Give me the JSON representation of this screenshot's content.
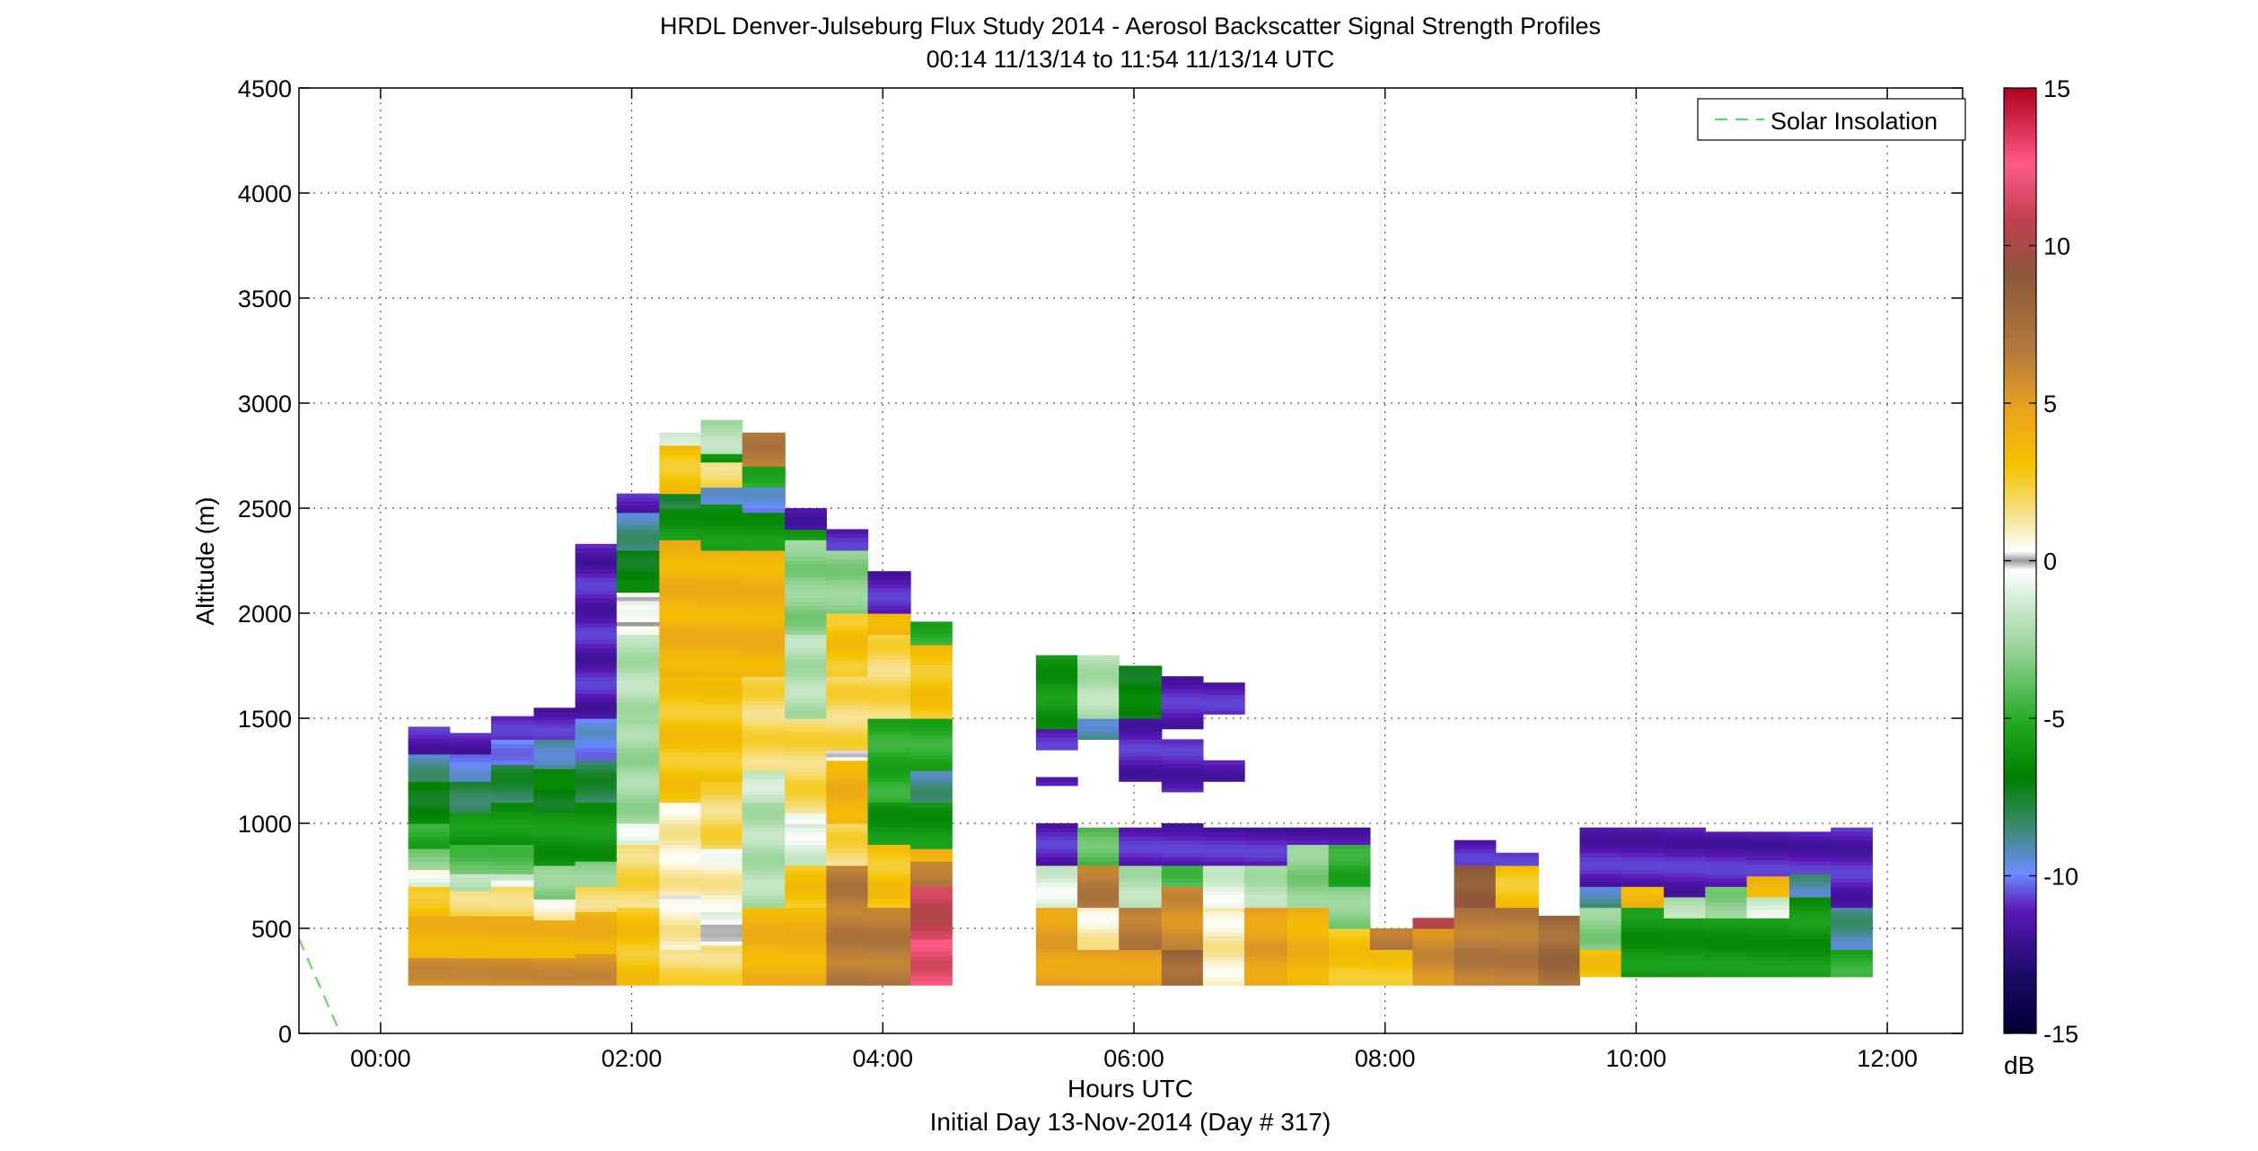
{
  "chart_data": {
    "type": "heatmap",
    "title": "HRDL Denver-Julseburg Flux Study 2014 - Aerosol Backscatter Signal Strength Profiles",
    "subtitle": "00:14 11/13/14 to 11:54 11/13/14  UTC",
    "xlabel": "Hours UTC",
    "xlabel2": "Initial Day 13-Nov-2014 (Day # 317)",
    "ylabel": "Altitude (m)",
    "xlim": [
      -0.65,
      12.6
    ],
    "ylim": [
      0,
      4500
    ],
    "x_ticks": [
      0,
      2,
      4,
      6,
      8,
      10,
      12
    ],
    "x_tick_labels": [
      "00:00",
      "02:00",
      "04:00",
      "06:00",
      "08:00",
      "10:00",
      "12:00"
    ],
    "y_ticks": [
      0,
      500,
      1000,
      1500,
      2000,
      2500,
      3000,
      3500,
      4000,
      4500
    ],
    "y_tick_labels": [
      "0",
      "500",
      "1000",
      "1500",
      "2000",
      "2500",
      "3000",
      "3500",
      "4000",
      "4500"
    ],
    "grid": true,
    "colorbar": {
      "range": [
        -15,
        15
      ],
      "ticks": [
        -15,
        -10,
        -5,
        0,
        5,
        10,
        15
      ],
      "tick_labels": [
        "-15",
        "-10",
        "-5",
        "0",
        "5",
        "10",
        "15"
      ],
      "units_label": "dB"
    },
    "legend": {
      "position": "top-right",
      "entries": [
        {
          "label": "Solar Insolation",
          "color": "#55dd55",
          "style": "dashed"
        }
      ]
    },
    "solar_insolation_line": [
      {
        "x": -0.65,
        "y": 450
      },
      {
        "x": -0.32,
        "y": 0
      }
    ],
    "profiles": [
      {
        "t0": 0.22,
        "t1": 0.55,
        "segments": [
          [
            230,
            360,
            6
          ],
          [
            360,
            560,
            4
          ],
          [
            560,
            700,
            3
          ],
          [
            700,
            760,
            -1
          ],
          [
            760,
            780,
            0
          ],
          [
            780,
            880,
            -3
          ],
          [
            880,
            1000,
            -5
          ],
          [
            1000,
            1200,
            -7
          ],
          [
            1200,
            1330,
            -9
          ],
          [
            1330,
            1460,
            -11.5
          ]
        ]
      },
      {
        "t0": 0.55,
        "t1": 0.88,
        "segments": [
          [
            230,
            360,
            6
          ],
          [
            360,
            560,
            4
          ],
          [
            560,
            680,
            2
          ],
          [
            680,
            760,
            -2
          ],
          [
            760,
            900,
            -4
          ],
          [
            900,
            1050,
            -6
          ],
          [
            1050,
            1200,
            -8
          ],
          [
            1200,
            1330,
            -10
          ],
          [
            1330,
            1430,
            -11.5
          ]
        ]
      },
      {
        "t0": 0.88,
        "t1": 1.22,
        "segments": [
          [
            230,
            360,
            6
          ],
          [
            360,
            560,
            4
          ],
          [
            560,
            700,
            2
          ],
          [
            700,
            730,
            0
          ],
          [
            730,
            760,
            -2
          ],
          [
            760,
            900,
            -4
          ],
          [
            900,
            1100,
            -6
          ],
          [
            1100,
            1280,
            -8
          ],
          [
            1280,
            1400,
            -10
          ],
          [
            1400,
            1510,
            -11.5
          ]
        ]
      },
      {
        "t0": 1.22,
        "t1": 1.55,
        "segments": [
          [
            230,
            360,
            6
          ],
          [
            360,
            540,
            4
          ],
          [
            540,
            640,
            1
          ],
          [
            640,
            800,
            -3
          ],
          [
            800,
            1050,
            -6
          ],
          [
            1050,
            1260,
            -7
          ],
          [
            1260,
            1400,
            -9
          ],
          [
            1400,
            1550,
            -11.5
          ]
        ]
      },
      {
        "t0": 1.55,
        "t1": 1.88,
        "segments": [
          [
            230,
            380,
            6
          ],
          [
            380,
            580,
            4
          ],
          [
            580,
            700,
            2
          ],
          [
            700,
            820,
            -3
          ],
          [
            820,
            1100,
            -6
          ],
          [
            1100,
            1300,
            -8
          ],
          [
            1300,
            1500,
            -10
          ],
          [
            1500,
            2330,
            -11.5
          ]
        ]
      },
      {
        "t0": 1.88,
        "t1": 2.22,
        "segments": [
          [
            230,
            600,
            3
          ],
          [
            600,
            900,
            2
          ],
          [
            900,
            1000,
            -1
          ],
          [
            1000,
            1500,
            -2.5
          ],
          [
            1500,
            1900,
            -2
          ],
          [
            1900,
            2100,
            0
          ],
          [
            2100,
            2300,
            -7
          ],
          [
            2300,
            2480,
            -9
          ],
          [
            2480,
            2570,
            -11.5
          ]
        ]
      },
      {
        "t0": 2.22,
        "t1": 2.55,
        "segments": [
          [
            230,
            400,
            2
          ],
          [
            400,
            620,
            1
          ],
          [
            620,
            660,
            0
          ],
          [
            660,
            1100,
            1
          ],
          [
            1100,
            1700,
            3
          ],
          [
            1700,
            2350,
            4
          ],
          [
            2350,
            2500,
            -6
          ],
          [
            2500,
            2570,
            -8
          ],
          [
            2570,
            2650,
            3
          ],
          [
            2650,
            2800,
            3
          ],
          [
            2800,
            2860,
            -1.5
          ]
        ]
      },
      {
        "t0": 2.55,
        "t1": 2.88,
        "segments": [
          [
            230,
            420,
            2
          ],
          [
            420,
            580,
            -0.5
          ],
          [
            580,
            800,
            1
          ],
          [
            800,
            880,
            0
          ],
          [
            880,
            1200,
            2
          ],
          [
            1200,
            1700,
            3
          ],
          [
            1700,
            2300,
            4
          ],
          [
            2300,
            2520,
            -6
          ],
          [
            2520,
            2600,
            -10
          ],
          [
            2600,
            2720,
            2
          ],
          [
            2720,
            2760,
            -6
          ],
          [
            2760,
            2920,
            -2
          ]
        ]
      },
      {
        "t0": 2.88,
        "t1": 3.22,
        "segments": [
          [
            230,
            600,
            4
          ],
          [
            600,
            1100,
            -2
          ],
          [
            1100,
            1250,
            -1.5
          ],
          [
            1250,
            1700,
            2
          ],
          [
            1700,
            2300,
            4
          ],
          [
            2300,
            2480,
            -6
          ],
          [
            2480,
            2600,
            -10
          ],
          [
            2600,
            2700,
            -5
          ],
          [
            2700,
            2860,
            7
          ]
        ]
      },
      {
        "t0": 3.22,
        "t1": 3.55,
        "segments": [
          [
            230,
            600,
            4
          ],
          [
            600,
            800,
            3
          ],
          [
            800,
            1000,
            -1
          ],
          [
            1000,
            1050,
            0
          ],
          [
            1050,
            1500,
            2
          ],
          [
            1500,
            1900,
            -2
          ],
          [
            1900,
            2350,
            -3
          ],
          [
            2350,
            2400,
            -6
          ],
          [
            2400,
            2500,
            -11.5
          ]
        ]
      },
      {
        "t0": 3.55,
        "t1": 3.88,
        "segments": [
          [
            230,
            800,
            7
          ],
          [
            800,
            1000,
            2
          ],
          [
            1000,
            1300,
            4
          ],
          [
            1300,
            1350,
            0
          ],
          [
            1350,
            1700,
            2
          ],
          [
            1700,
            2000,
            3
          ],
          [
            2000,
            2300,
            -3
          ],
          [
            2300,
            2400,
            -11.5
          ]
        ]
      },
      {
        "t0": 3.88,
        "t1": 4.22,
        "segments": [
          [
            230,
            600,
            7
          ],
          [
            600,
            900,
            3
          ],
          [
            900,
            1100,
            -6
          ],
          [
            1100,
            1500,
            -5
          ],
          [
            1500,
            1900,
            2
          ],
          [
            1900,
            2000,
            4
          ],
          [
            2000,
            2200,
            -11.5
          ]
        ]
      },
      {
        "t0": 4.22,
        "t1": 4.55,
        "segments": [
          [
            230,
            450,
            12
          ],
          [
            450,
            700,
            11
          ],
          [
            700,
            820,
            7
          ],
          [
            820,
            880,
            4
          ],
          [
            880,
            1100,
            -6
          ],
          [
            1100,
            1250,
            -9
          ],
          [
            1250,
            1500,
            -5
          ],
          [
            1500,
            1850,
            3
          ],
          [
            1850,
            1960,
            -5
          ]
        ]
      },
      {
        "t0": 5.22,
        "t1": 5.55,
        "segments": [
          [
            230,
            600,
            5
          ],
          [
            600,
            800,
            -1
          ],
          [
            800,
            1000,
            -11.5
          ],
          [
            1180,
            1220,
            -11.5
          ],
          [
            1350,
            1450,
            -11.5
          ],
          [
            1450,
            1800,
            -6
          ]
        ]
      },
      {
        "t0": 5.55,
        "t1": 5.88,
        "segments": [
          [
            230,
            400,
            5
          ],
          [
            400,
            600,
            1
          ],
          [
            600,
            800,
            7
          ],
          [
            800,
            980,
            -4
          ],
          [
            1400,
            1500,
            -9
          ],
          [
            1500,
            1800,
            -2
          ]
        ]
      },
      {
        "t0": 5.88,
        "t1": 6.22,
        "segments": [
          [
            230,
            400,
            5
          ],
          [
            400,
            600,
            7
          ],
          [
            600,
            800,
            -2
          ],
          [
            800,
            980,
            -11.5
          ],
          [
            1200,
            1500,
            -11.5
          ],
          [
            1500,
            1750,
            -7
          ]
        ]
      },
      {
        "t0": 6.22,
        "t1": 6.55,
        "segments": [
          [
            230,
            400,
            8
          ],
          [
            400,
            700,
            6
          ],
          [
            700,
            800,
            -4
          ],
          [
            800,
            1000,
            -11.5
          ],
          [
            1150,
            1400,
            -11.5
          ],
          [
            1450,
            1700,
            -11.5
          ]
        ]
      },
      {
        "t0": 6.55,
        "t1": 6.88,
        "segments": [
          [
            230,
            600,
            1
          ],
          [
            600,
            800,
            -1
          ],
          [
            800,
            980,
            -11.5
          ],
          [
            1200,
            1300,
            -11.5
          ],
          [
            1520,
            1670,
            -11.5
          ]
        ]
      },
      {
        "t0": 6.88,
        "t1": 7.22,
        "segments": [
          [
            230,
            600,
            5
          ],
          [
            600,
            800,
            -2
          ],
          [
            800,
            980,
            -11.5
          ]
        ]
      },
      {
        "t0": 7.22,
        "t1": 7.55,
        "segments": [
          [
            230,
            600,
            4
          ],
          [
            600,
            900,
            -3
          ],
          [
            900,
            980,
            -11.5
          ]
        ]
      },
      {
        "t0": 7.55,
        "t1": 7.88,
        "segments": [
          [
            230,
            500,
            3
          ],
          [
            500,
            700,
            -3
          ],
          [
            700,
            900,
            -5
          ],
          [
            900,
            980,
            -11.5
          ]
        ]
      },
      {
        "t0": 7.88,
        "t1": 8.22,
        "segments": [
          [
            230,
            400,
            3
          ],
          [
            400,
            500,
            7
          ]
        ]
      },
      {
        "t0": 8.22,
        "t1": 8.55,
        "segments": [
          [
            230,
            500,
            6
          ],
          [
            500,
            550,
            11
          ]
        ]
      },
      {
        "t0": 8.55,
        "t1": 8.88,
        "segments": [
          [
            230,
            600,
            7
          ],
          [
            600,
            800,
            9
          ],
          [
            800,
            920,
            -11.5
          ]
        ]
      },
      {
        "t0": 8.88,
        "t1": 9.22,
        "segments": [
          [
            230,
            600,
            7
          ],
          [
            600,
            800,
            3
          ],
          [
            800,
            860,
            -11.5
          ]
        ]
      },
      {
        "t0": 9.22,
        "t1": 9.55,
        "segments": [
          [
            230,
            400,
            8
          ],
          [
            400,
            560,
            8
          ]
        ]
      },
      {
        "t0": 9.55,
        "t1": 9.88,
        "segments": [
          [
            270,
            400,
            3
          ],
          [
            400,
            600,
            -3
          ],
          [
            600,
            700,
            -9
          ],
          [
            700,
            980,
            -11.5
          ]
        ]
      },
      {
        "t0": 9.88,
        "t1": 10.22,
        "segments": [
          [
            270,
            600,
            -6
          ],
          [
            600,
            700,
            4
          ],
          [
            700,
            980,
            -11.5
          ]
        ]
      },
      {
        "t0": 10.22,
        "t1": 10.55,
        "segments": [
          [
            270,
            550,
            -6
          ],
          [
            550,
            650,
            -2
          ],
          [
            650,
            980,
            -11.5
          ]
        ]
      },
      {
        "t0": 10.55,
        "t1": 10.88,
        "segments": [
          [
            270,
            550,
            -6
          ],
          [
            550,
            700,
            -3
          ],
          [
            700,
            960,
            -11.5
          ]
        ]
      },
      {
        "t0": 10.88,
        "t1": 11.22,
        "segments": [
          [
            270,
            550,
            -6
          ],
          [
            550,
            650,
            -1
          ],
          [
            650,
            750,
            4
          ],
          [
            750,
            960,
            -11.5
          ]
        ]
      },
      {
        "t0": 11.22,
        "t1": 11.55,
        "segments": [
          [
            270,
            650,
            -6
          ],
          [
            650,
            760,
            -9
          ],
          [
            760,
            960,
            -11.5
          ]
        ]
      },
      {
        "t0": 11.55,
        "t1": 11.88,
        "segments": [
          [
            270,
            400,
            -5
          ],
          [
            400,
            600,
            -9
          ],
          [
            600,
            980,
            -11.5
          ]
        ]
      }
    ]
  }
}
